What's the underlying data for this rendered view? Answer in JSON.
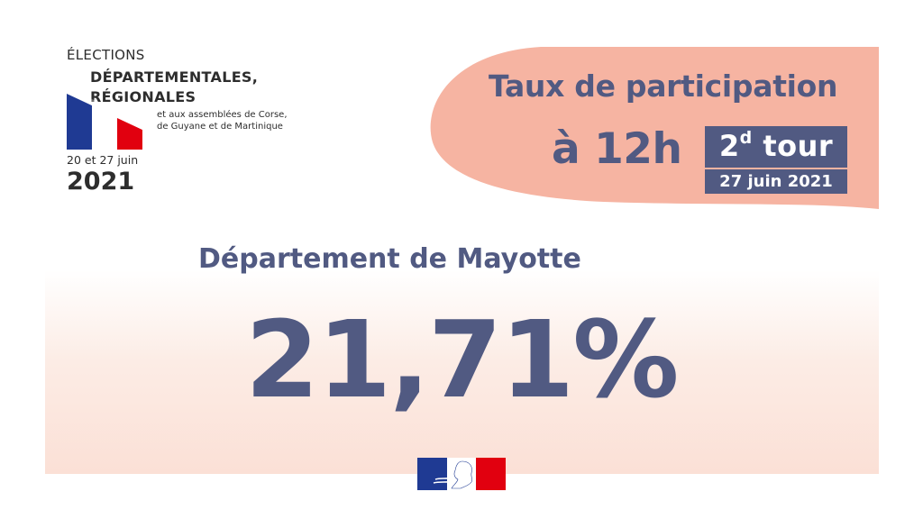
{
  "logo": {
    "line1": "ÉLECTIONS",
    "line2": "DÉPARTEMENTALES,",
    "line3": "RÉGIONALES",
    "subtitle_a": "et aux assemblées de Corse,",
    "subtitle_b": "de Guyane et de Martinique",
    "dates": "20 et 27 juin",
    "year": "2021",
    "flag_colors": {
      "blue": "#1f3a93",
      "white": "#ffffff",
      "red": "#e1000f"
    }
  },
  "header": {
    "title_line1": "Taux de participation",
    "title_line2": "à 12h",
    "tour_number": "2",
    "tour_sup": "d",
    "tour_word": "tour",
    "tour_date": "27 juin 2021"
  },
  "main": {
    "department": "Département de Mayotte",
    "percentage": "21,71%"
  },
  "colors": {
    "accent": "#515a82",
    "blob": "#f6b4a2",
    "panel_gradient_end": "#fbe0d6"
  },
  "footer": {
    "emblem": "marianne-logo-icon"
  }
}
